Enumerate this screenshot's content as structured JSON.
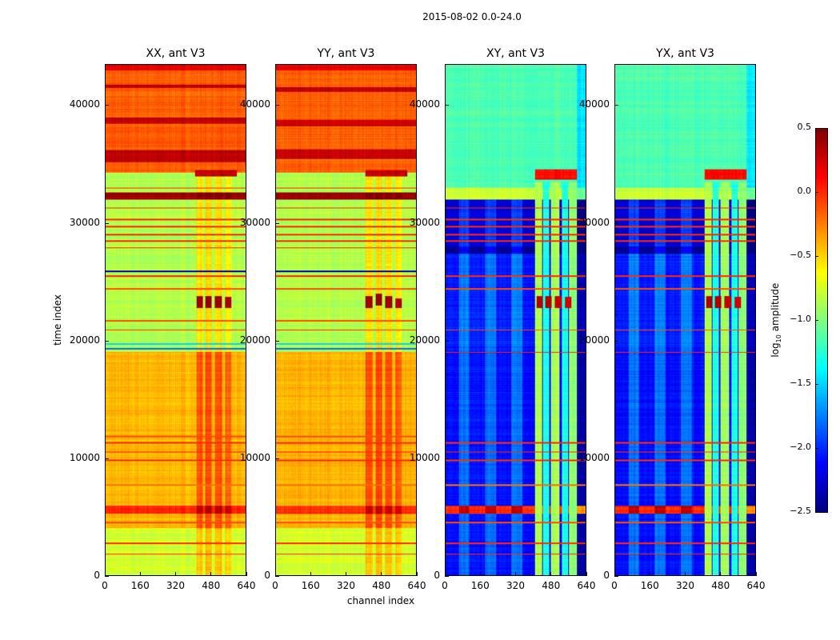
{
  "chart_data": {
    "type": "heatmap",
    "title": "2015-08-02 0.0-24.0",
    "xlabel": "channel index",
    "ylabel": "time index",
    "xlim": [
      0,
      640
    ],
    "ylim": [
      0,
      43500
    ],
    "xticks": [
      "0",
      "160",
      "320",
      "480",
      "640"
    ],
    "xtick_values": [
      0,
      160,
      320,
      480,
      640
    ],
    "yticks": [
      "0",
      "10000",
      "20000",
      "30000",
      "40000"
    ],
    "ytick_values": [
      0,
      10000,
      20000,
      30000,
      40000
    ],
    "colormap": "jet",
    "colorbar": {
      "label_main": "log",
      "label_sub": "10",
      "label_rest": " amplitude",
      "range": [
        -2.5,
        0.5
      ],
      "ticks": [
        "0.5",
        "0.0",
        "−0.5",
        "−1.0",
        "−1.5",
        "−2.0",
        "−2.5"
      ],
      "tick_values": [
        0.5,
        0.0,
        -0.5,
        -1.0,
        -1.5,
        -2.0,
        -2.5
      ]
    },
    "panels": [
      {
        "title": "XX, ant V3",
        "segments": [
          [
            0,
            4000,
            -0.75
          ],
          [
            4000,
            19000,
            -0.42
          ],
          [
            19000,
            34300,
            -0.85
          ],
          [
            34300,
            43500,
            -0.15
          ],
          [
            32000,
            32600,
            0.4
          ],
          [
            5200,
            5900,
            0.0
          ],
          [
            35200,
            36200,
            0.3
          ],
          [
            38500,
            39000,
            0.3
          ],
          [
            41500,
            41800,
            0.3
          ],
          [
            43000,
            43500,
            0.2
          ]
        ],
        "mods": [
          [
            415,
            445,
            0,
            34300,
            "add",
            0.3
          ],
          [
            455,
            485,
            0,
            34300,
            "add",
            0.35
          ],
          [
            500,
            530,
            0,
            34300,
            "add",
            0.3
          ],
          [
            545,
            575,
            0,
            34300,
            "add",
            0.25
          ],
          [
            410,
            600,
            34000,
            34500,
            "set",
            0.3
          ]
        ],
        "lines": [
          [
            1800,
            0.0
          ],
          [
            2700,
            0.0
          ],
          [
            4500,
            -0.1
          ],
          [
            7700,
            -0.2
          ],
          [
            9800,
            0.0
          ],
          [
            10500,
            0.0
          ],
          [
            11300,
            0.0
          ],
          [
            11800,
            -0.1
          ],
          [
            19300,
            -1.8
          ],
          [
            19700,
            -1.5
          ],
          [
            20900,
            0.0
          ],
          [
            21700,
            -0.1
          ],
          [
            24400,
            -0.1
          ],
          [
            25500,
            0.0
          ],
          [
            25900,
            -2.3
          ],
          [
            27900,
            0.0
          ],
          [
            28500,
            0.0
          ],
          [
            29000,
            0.0
          ],
          [
            29700,
            0.0
          ],
          [
            30300,
            0.0
          ],
          [
            31300,
            0.0
          ],
          [
            33000,
            0.0
          ]
        ],
        "overlays": [
          [
            415,
            445,
            22800,
            23800,
            "set",
            0.4
          ],
          [
            455,
            485,
            22800,
            23800,
            "set",
            0.42
          ],
          [
            500,
            530,
            22800,
            23800,
            "set",
            0.4
          ],
          [
            545,
            575,
            22800,
            23700,
            "set",
            0.35
          ]
        ]
      },
      {
        "title": "YY, ant V3",
        "segments": [
          [
            0,
            4000,
            -0.75
          ],
          [
            4000,
            19000,
            -0.4
          ],
          [
            19000,
            34300,
            -0.85
          ],
          [
            34300,
            43500,
            -0.15
          ],
          [
            32000,
            32600,
            0.4
          ],
          [
            5200,
            5900,
            0.0
          ],
          [
            35500,
            36300,
            0.3
          ],
          [
            38300,
            38800,
            0.3
          ],
          [
            41200,
            41600,
            0.3
          ],
          [
            43000,
            43500,
            0.2
          ]
        ],
        "mods": [
          [
            410,
            440,
            0,
            34300,
            "add",
            0.3
          ],
          [
            455,
            485,
            0,
            34300,
            "add",
            0.35
          ],
          [
            500,
            530,
            0,
            34300,
            "add",
            0.3
          ],
          [
            545,
            575,
            0,
            34300,
            "add",
            0.25
          ],
          [
            410,
            600,
            34000,
            34500,
            "set",
            0.3
          ]
        ],
        "lines": [
          [
            1800,
            0.0
          ],
          [
            2700,
            0.0
          ],
          [
            4500,
            -0.1
          ],
          [
            7700,
            -0.2
          ],
          [
            9800,
            0.0
          ],
          [
            10500,
            0.0
          ],
          [
            11300,
            0.0
          ],
          [
            11800,
            -0.1
          ],
          [
            19300,
            -1.8
          ],
          [
            19700,
            -1.5
          ],
          [
            20900,
            0.0
          ],
          [
            21700,
            -0.1
          ],
          [
            24400,
            -0.1
          ],
          [
            25500,
            0.0
          ],
          [
            25900,
            -2.3
          ],
          [
            27900,
            0.0
          ],
          [
            28500,
            0.0
          ],
          [
            29000,
            0.0
          ],
          [
            29700,
            0.0
          ],
          [
            30300,
            0.0
          ],
          [
            31300,
            0.0
          ],
          [
            33000,
            0.0
          ]
        ],
        "overlays": [
          [
            410,
            440,
            22800,
            23800,
            "set",
            0.4
          ],
          [
            455,
            485,
            23000,
            24000,
            "set",
            0.42
          ],
          [
            500,
            530,
            22800,
            23800,
            "set",
            0.4
          ],
          [
            545,
            575,
            22800,
            23600,
            "set",
            0.35
          ]
        ]
      },
      {
        "title": "XY, ant V3",
        "segments": [
          [
            0,
            19000,
            -2.1
          ],
          [
            19000,
            27400,
            -2.05
          ],
          [
            27400,
            32000,
            -2.25
          ],
          [
            27400,
            28000,
            -2.45
          ],
          [
            32000,
            33000,
            -0.8
          ],
          [
            33000,
            43500,
            -1.15
          ],
          [
            5200,
            5900,
            0.0
          ]
        ],
        "mods": [
          [
            60,
            110,
            0,
            32000,
            "add",
            0.3
          ],
          [
            180,
            230,
            0,
            32000,
            "add",
            0.3
          ],
          [
            300,
            350,
            0,
            32000,
            "add",
            0.3
          ],
          [
            600,
            640,
            0,
            43500,
            "add",
            -0.3
          ],
          [
            410,
            440,
            0,
            33500,
            "set",
            -0.85
          ],
          [
            445,
            475,
            0,
            33500,
            "set",
            -1.3
          ],
          [
            480,
            520,
            0,
            33500,
            "set",
            -0.9
          ],
          [
            530,
            560,
            0,
            33500,
            "set",
            -1.3
          ],
          [
            565,
            600,
            0,
            33500,
            "set",
            -0.95
          ],
          [
            410,
            600,
            33700,
            34600,
            "set",
            0.1
          ]
        ],
        "lines": [
          [
            1800,
            0.0
          ],
          [
            2700,
            0.0
          ],
          [
            4500,
            -0.1
          ],
          [
            7700,
            -0.2
          ],
          [
            9800,
            0.0
          ],
          [
            10500,
            0.0
          ],
          [
            11300,
            0.0
          ],
          [
            19000,
            0.0
          ],
          [
            20900,
            -0.1
          ],
          [
            24400,
            -0.1
          ],
          [
            25500,
            0.0
          ],
          [
            28500,
            0.0
          ],
          [
            29000,
            0.0
          ],
          [
            29700,
            0.0
          ],
          [
            30300,
            0.0
          ],
          [
            31300,
            0.0
          ]
        ],
        "overlays": [
          [
            415,
            445,
            22800,
            23800,
            "set",
            0.35
          ],
          [
            455,
            485,
            22800,
            23800,
            "set",
            0.35
          ],
          [
            500,
            530,
            22800,
            23800,
            "set",
            0.3
          ],
          [
            545,
            575,
            22800,
            23700,
            "set",
            0.25
          ]
        ]
      },
      {
        "title": "YX, ant V3",
        "segments": [
          [
            0,
            19000,
            -2.1
          ],
          [
            19000,
            27400,
            -2.05
          ],
          [
            27400,
            32000,
            -2.25
          ],
          [
            27400,
            28000,
            -2.45
          ],
          [
            32000,
            33000,
            -0.8
          ],
          [
            33000,
            43500,
            -1.15
          ],
          [
            5200,
            5900,
            0.0
          ]
        ],
        "mods": [
          [
            60,
            110,
            0,
            32000,
            "add",
            0.3
          ],
          [
            180,
            230,
            0,
            32000,
            "add",
            0.3
          ],
          [
            300,
            350,
            0,
            32000,
            "add",
            0.3
          ],
          [
            600,
            640,
            0,
            43500,
            "add",
            -0.3
          ],
          [
            410,
            440,
            0,
            33500,
            "set",
            -0.85
          ],
          [
            445,
            475,
            0,
            33500,
            "set",
            -1.3
          ],
          [
            480,
            520,
            0,
            33500,
            "set",
            -0.9
          ],
          [
            530,
            560,
            0,
            33500,
            "set",
            -1.3
          ],
          [
            565,
            600,
            0,
            33500,
            "set",
            -0.95
          ],
          [
            410,
            600,
            33700,
            34600,
            "set",
            0.1
          ]
        ],
        "lines": [
          [
            1800,
            0.0
          ],
          [
            2700,
            0.0
          ],
          [
            4500,
            -0.1
          ],
          [
            7700,
            -0.2
          ],
          [
            9800,
            0.0
          ],
          [
            10500,
            0.0
          ],
          [
            11300,
            0.0
          ],
          [
            19000,
            0.0
          ],
          [
            20900,
            -0.1
          ],
          [
            24400,
            -0.1
          ],
          [
            25500,
            0.0
          ],
          [
            28500,
            0.0
          ],
          [
            29000,
            0.0
          ],
          [
            29700,
            0.0
          ],
          [
            30300,
            0.0
          ],
          [
            31300,
            0.0
          ]
        ],
        "overlays": [
          [
            415,
            445,
            22800,
            23800,
            "set",
            0.35
          ],
          [
            455,
            485,
            22800,
            23800,
            "set",
            0.35
          ],
          [
            500,
            530,
            22800,
            23800,
            "set",
            0.3
          ],
          [
            545,
            575,
            22800,
            23700,
            "set",
            0.25
          ]
        ]
      }
    ]
  }
}
